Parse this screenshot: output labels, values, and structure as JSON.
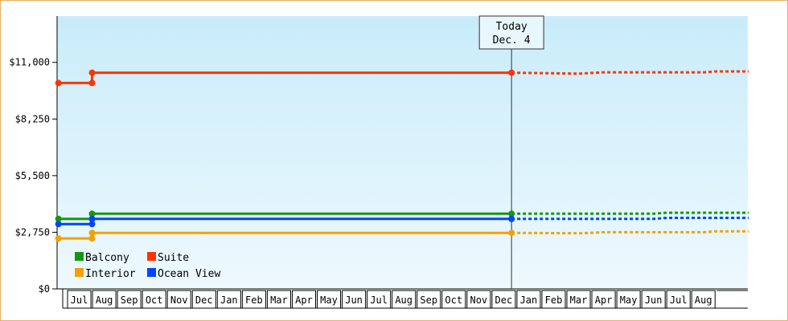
{
  "chart_data": {
    "type": "line",
    "ylim": [
      0,
      13250
    ],
    "y_ticks": [
      {
        "value": 0,
        "label": "$0"
      },
      {
        "value": 2750,
        "label": "$2,750"
      },
      {
        "value": 5500,
        "label": "$5,500"
      },
      {
        "value": 8250,
        "label": "$8,250"
      },
      {
        "value": 11000,
        "label": "$11,000"
      }
    ],
    "x_months": [
      "Jul",
      "Aug",
      "Sep",
      "Oct",
      "Nov",
      "Dec",
      "Jan",
      "Feb",
      "Mar",
      "Apr",
      "May",
      "Jun",
      "Jul",
      "Aug",
      "Sep",
      "Oct",
      "Nov",
      "Dec",
      "Jan",
      "Feb",
      "Mar",
      "Apr",
      "May",
      "Jun",
      "Jul",
      "Aug"
    ],
    "grid": false,
    "legend_position": "bottom-left",
    "today_marker": {
      "line1": "Today",
      "line2": "Dec. 4",
      "x": 17.3
    },
    "series": [
      {
        "name": "Balcony",
        "color": "#119911",
        "actual": [
          [
            -0.85,
            3400
          ],
          [
            0.5,
            3400
          ],
          [
            0.5,
            3650
          ],
          [
            17.3,
            3650
          ]
        ],
        "projected": [
          [
            17.3,
            3650
          ],
          [
            23,
            3650
          ],
          [
            23.5,
            3700
          ],
          [
            26.8,
            3700
          ]
        ]
      },
      {
        "name": "Suite",
        "color": "#ff3300",
        "actual": [
          [
            -0.85,
            10000
          ],
          [
            0.5,
            10000
          ],
          [
            0.5,
            10500
          ],
          [
            17.3,
            10500
          ]
        ],
        "projected": [
          [
            17.3,
            10500
          ],
          [
            20,
            10450
          ],
          [
            21,
            10520
          ],
          [
            25,
            10520
          ],
          [
            25.5,
            10560
          ],
          [
            26.8,
            10560
          ]
        ]
      },
      {
        "name": "Interior",
        "color": "#f5a000",
        "actual": [
          [
            -0.85,
            2450
          ],
          [
            0.5,
            2450
          ],
          [
            0.5,
            2720
          ],
          [
            17.3,
            2720
          ]
        ],
        "projected": [
          [
            17.3,
            2720
          ],
          [
            20,
            2700
          ],
          [
            21,
            2750
          ],
          [
            25,
            2750
          ],
          [
            25.5,
            2800
          ],
          [
            26.8,
            2800
          ]
        ]
      },
      {
        "name": "Ocean View",
        "color": "#0044ff",
        "actual": [
          [
            -0.85,
            3150
          ],
          [
            0.5,
            3150
          ],
          [
            0.5,
            3400
          ],
          [
            17.3,
            3400
          ]
        ],
        "projected": [
          [
            17.3,
            3400
          ],
          [
            23,
            3400
          ],
          [
            23.5,
            3450
          ],
          [
            26.8,
            3450
          ]
        ]
      }
    ]
  }
}
